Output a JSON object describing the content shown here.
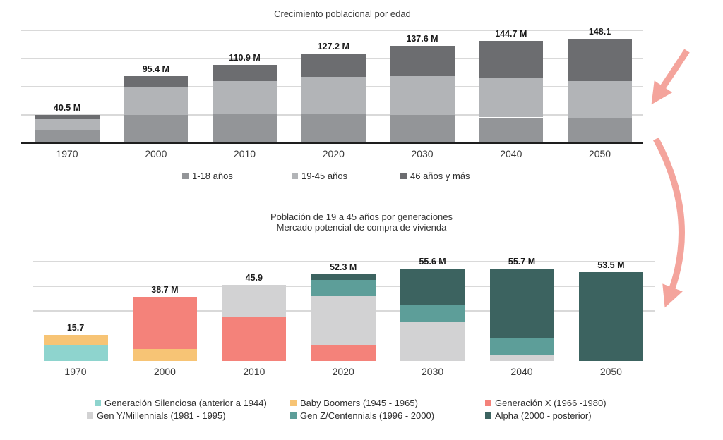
{
  "chart_data": [
    {
      "type": "bar",
      "stacked": true,
      "title": "Crecimiento poblacional por edad",
      "categories": [
        "1970",
        "2000",
        "2010",
        "2020",
        "2030",
        "2040",
        "2050"
      ],
      "value_labels": [
        "40.5 M",
        "95.4 M",
        "110.9 M",
        "127.2 M",
        "137.6 M",
        "144.7 M",
        "148.1"
      ],
      "series": [
        {
          "name": "1-18 años",
          "color": "#939598",
          "values": [
            18.0,
            40.3,
            42.0,
            41.5,
            39.7,
            36.5,
            34.6
          ]
        },
        {
          "name": "19-45 años",
          "color": "#B2B4B7",
          "values": [
            15.7,
            38.7,
            45.9,
            52.3,
            55.6,
            55.7,
            53.5
          ]
        },
        {
          "name": "46 años y más",
          "color": "#6C6D70",
          "values": [
            6.8,
            16.4,
            23.0,
            33.4,
            42.3,
            52.5,
            60.0
          ]
        }
      ],
      "totals": [
        40.5,
        95.4,
        110.9,
        127.2,
        137.6,
        144.7,
        148.1
      ],
      "xlabel": "",
      "ylabel": "",
      "ylim": [
        0,
        165
      ],
      "gridlines": [
        40,
        80,
        120,
        160
      ],
      "grid_on": true,
      "legend_position": "bottom"
    },
    {
      "type": "bar",
      "stacked": true,
      "title": "Población de 19 a 45 años por generaciones",
      "subtitle": "Mercado potencial de compra de vivienda",
      "categories": [
        "1970",
        "2000",
        "2010",
        "2020",
        "2030",
        "2040",
        "2050"
      ],
      "value_labels": [
        "15.7",
        "38.7 M",
        "45.9",
        "52.3 M",
        "55.6 M",
        "55.7 M",
        "53.5 M"
      ],
      "series": [
        {
          "name": "Generación Silenciosa (anterior a 1944)",
          "color": "#8ED4CE",
          "values": [
            9.7,
            0,
            0,
            0,
            0,
            0,
            0
          ]
        },
        {
          "name": "Baby Boomers (1945 - 1965)",
          "color": "#F7C475",
          "values": [
            6.0,
            7.3,
            0,
            0,
            0,
            0,
            0
          ]
        },
        {
          "name": "Generación X (1966 -1980)",
          "color": "#F4827A",
          "values": [
            0,
            31.4,
            26.4,
            9.6,
            0,
            0,
            0
          ]
        },
        {
          "name": "Gen Y/Millennials (1981 - 1995)",
          "color": "#D2D2D3",
          "values": [
            0,
            0,
            19.5,
            29.4,
            23.5,
            3.4,
            0
          ]
        },
        {
          "name": "Gen Z/Centennials (1996 - 2000)",
          "color": "#5D9E99",
          "values": [
            0,
            0,
            0,
            9.8,
            9.8,
            10.1,
            0
          ]
        },
        {
          "name": "Alpha (2000 - posterior)",
          "color": "#3C6360",
          "values": [
            0,
            0,
            0,
            3.5,
            22.3,
            42.2,
            53.5
          ]
        }
      ],
      "totals": [
        15.7,
        38.7,
        45.9,
        52.3,
        55.6,
        55.7,
        53.5
      ],
      "xlabel": "",
      "ylabel": "",
      "ylim": [
        0,
        63
      ],
      "gridlines": [
        15,
        30,
        45,
        60
      ],
      "grid_on": true,
      "legend_position": "bottom"
    }
  ],
  "arrows": {
    "color": "#F4A49C",
    "items": [
      {
        "name": "arrow-straight-down-left"
      },
      {
        "name": "arrow-curved-down"
      }
    ]
  }
}
